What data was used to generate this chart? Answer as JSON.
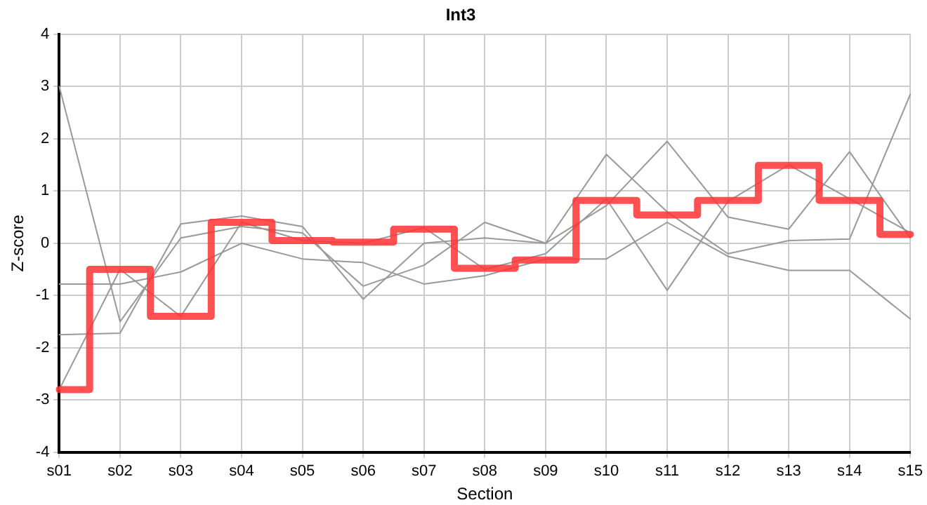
{
  "chart_data": {
    "type": "line",
    "title": "Int3",
    "xlabel": "Section",
    "ylabel": "Z-score",
    "categories": [
      "s01",
      "s02",
      "s03",
      "s04",
      "s05",
      "s06",
      "s07",
      "s08",
      "s09",
      "s10",
      "s11",
      "s12",
      "s13",
      "s14",
      "s15"
    ],
    "series": [
      {
        "color": "#999999",
        "values": [
          3,
          -1.5,
          0.1,
          0.32,
          0.2,
          -0.82,
          -0.42,
          0.4,
          0,
          1.7,
          0.6,
          -0.2,
          0.05,
          0.08,
          2.85
        ]
      },
      {
        "color": "#999999",
        "values": [
          -1.75,
          -1.72,
          0.37,
          0.52,
          0.32,
          -1.07,
          0,
          0.1,
          0,
          0.72,
          1.95,
          0.5,
          0.27,
          1.75,
          0.1
        ]
      },
      {
        "color": "#999999",
        "values": [
          -0.78,
          -0.78,
          -0.55,
          0,
          -0.3,
          -0.37,
          -0.78,
          -0.62,
          -0.3,
          -0.3,
          0.4,
          -0.25,
          -0.52,
          -0.52,
          -1.45
        ]
      },
      {
        "color": "#999999",
        "values": [
          -2.8,
          -0.5,
          -1.4,
          0.4,
          0.05,
          0,
          0.3,
          -0.5,
          -0.2,
          0.85,
          -0.9,
          0.8,
          1.5,
          0.85,
          0.2
        ]
      },
      {
        "type": "step",
        "color": "#ff3333",
        "values": [
          -2.8,
          -0.5,
          -1.4,
          0.4,
          0.05,
          0.02,
          0.27,
          -0.48,
          -0.32,
          0.82,
          0.54,
          0.82,
          1.49,
          0.82,
          0.17
        ]
      }
    ],
    "ylim": [
      -4,
      4
    ],
    "yticks": [
      -4,
      -3,
      -2,
      -1,
      0,
      1,
      2,
      3,
      4
    ],
    "grid": true,
    "legend": false,
    "marker": "none",
    "line_style": "solid"
  }
}
